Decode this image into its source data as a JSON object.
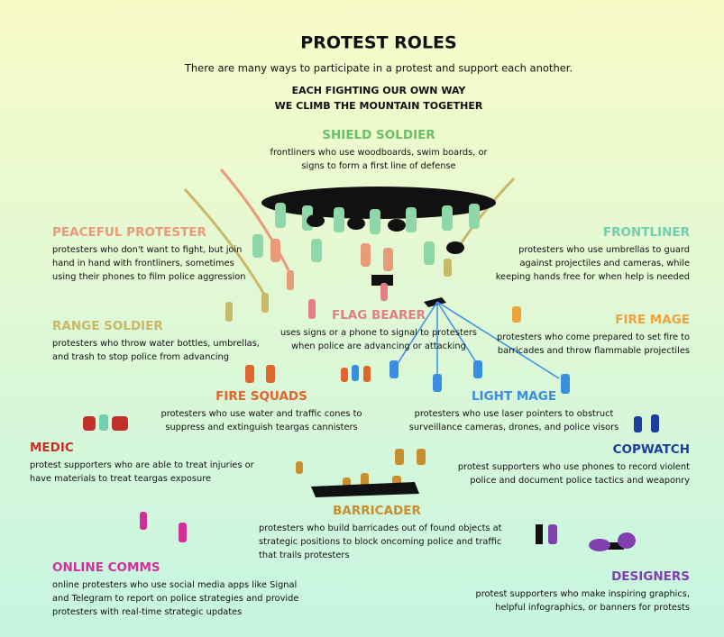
{
  "title": "PROTEST ROLES",
  "subtitle": "There are many ways to participate in a protest and support each another.",
  "motto": [
    "EACH FIGHTING OUR OWN WAY",
    "WE CLIMB THE MOUNTAIN TOGETHER"
  ],
  "roles": [
    {
      "name": "SHIELD SOLDIER",
      "color": "#6cbf6a",
      "description": [
        "frontliners who use woodboards, swim boards, or",
        "signs to form a first line of defense"
      ]
    },
    {
      "name": "PEACEFUL PROTESTER",
      "color": "#e99a78",
      "description": [
        "protesters who don't want to fight, but join",
        "hand in hand with frontliners, sometimes",
        "using their phones to film police aggression"
      ]
    },
    {
      "name": "FRONTLINER",
      "color": "#74cdb0",
      "description": [
        "protesters who use umbrellas to guard",
        "against projectiles and cameras, while",
        "keeping hands free for when help is needed"
      ]
    },
    {
      "name": "RANGE SOLDIER",
      "color": "#c8b86a",
      "description": [
        "protesters who throw water bottles, umbrellas,",
        "and trash to stop police from advancing"
      ]
    },
    {
      "name": "FLAG BEARER",
      "color": "#e57d88",
      "description": [
        "uses signs or a phone to signal to protesters",
        "when police are advancing or attacking"
      ]
    },
    {
      "name": "FIRE MAGE",
      "color": "#f0a23e",
      "description": [
        "protesters who come prepared to set fire to",
        "barricades and throw flammable projectiles"
      ]
    },
    {
      "name": "FIRE SQUADS",
      "color": "#e0662e",
      "description": [
        "protesters who use water and traffic cones to",
        "suppress and extinguish teargas cannisters"
      ]
    },
    {
      "name": "LIGHT MAGE",
      "color": "#3a8ee0",
      "description": [
        "protesters who use laser pointers to obstruct",
        "surveillance cameras, drones, and police visors"
      ]
    },
    {
      "name": "MEDIC",
      "color": "#c2302a",
      "description": [
        "protest supporters who are able to treat injuries or",
        "have materials to treat teargas exposure"
      ]
    },
    {
      "name": "COPWATCH",
      "color": "#1c3f9e",
      "description": [
        "protest supporters who use phones to record violent",
        "police and document police tactics and weaponry"
      ]
    },
    {
      "name": "BARRICADER",
      "color": "#c88f30",
      "description": [
        "protesters who build barricades out of found objects at",
        "strategic positions to block oncoming police and traffic",
        "that trails protesters"
      ]
    },
    {
      "name": "ONLINE COMMS",
      "color": "#d22f9a",
      "description": [
        "online protesters who use social media apps like Signal",
        "and Telegram to report on police strategies and provide",
        "protesters with real-time strategic updates"
      ]
    },
    {
      "name": "DESIGNERS",
      "color": "#8040b0",
      "description": [
        "protest supporters who make inspiring graphics,",
        "helpful infographics, or banners for protests"
      ]
    }
  ]
}
